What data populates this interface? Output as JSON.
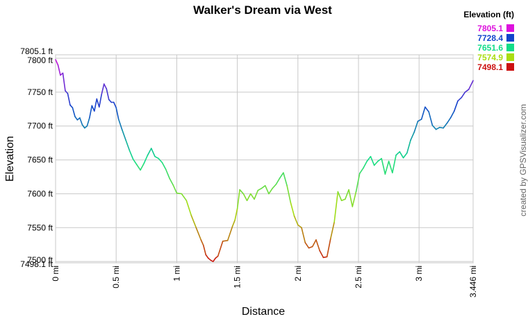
{
  "chart_data": {
    "type": "line",
    "title": "Walker's Dream via West",
    "xlabel": "Distance",
    "ylabel": "Elevation",
    "credit": "created by GPSVisualizer.com",
    "xlim": [
      0,
      3.446
    ],
    "ylim": [
      7498.1,
      7805.1
    ],
    "x_ticks": [
      {
        "value": 0,
        "label": "0 mi"
      },
      {
        "value": 0.5,
        "label": "0.5 mi"
      },
      {
        "value": 1,
        "label": "1 mi"
      },
      {
        "value": 1.5,
        "label": "1.5 mi"
      },
      {
        "value": 2,
        "label": "2 mi"
      },
      {
        "value": 2.5,
        "label": "2.5 mi"
      },
      {
        "value": 3,
        "label": "3 mi"
      },
      {
        "value": 3.446,
        "label": "3.446 mi"
      }
    ],
    "y_ticks": [
      {
        "value": 7498.1,
        "label": "7498.1 ft"
      },
      {
        "value": 7500,
        "label": "7500 ft"
      },
      {
        "value": 7550,
        "label": "7550 ft"
      },
      {
        "value": 7600,
        "label": "7600 ft"
      },
      {
        "value": 7650,
        "label": "7650 ft"
      },
      {
        "value": 7700,
        "label": "7700 ft"
      },
      {
        "value": 7750,
        "label": "7750 ft"
      },
      {
        "value": 7800,
        "label": "7800 ft"
      },
      {
        "value": 7805.1,
        "label": "7805.1 ft"
      }
    ],
    "grid": true,
    "legend": {
      "title": "Elevation (ft)",
      "placement": "top-right",
      "items": [
        {
          "label": "7805.1",
          "color": "#dd11dd"
        },
        {
          "label": "7728.4",
          "color": "#1144cc"
        },
        {
          "label": "7651.6",
          "color": "#11dd88"
        },
        {
          "label": "7574.9",
          "color": "#aadd11"
        },
        {
          "label": "7498.1",
          "color": "#cc1111"
        }
      ]
    },
    "series": [
      {
        "x": [
          0.0,
          0.02,
          0.04,
          0.06,
          0.08,
          0.1,
          0.12,
          0.14,
          0.16,
          0.18,
          0.2,
          0.22,
          0.24,
          0.26,
          0.28,
          0.3,
          0.32,
          0.34,
          0.36,
          0.38,
          0.4,
          0.42,
          0.44,
          0.46,
          0.48,
          0.5,
          0.52,
          0.55,
          0.58,
          0.61,
          0.64,
          0.67,
          0.7,
          0.73,
          0.76,
          0.79,
          0.82,
          0.85,
          0.88,
          0.91,
          0.94,
          0.97,
          1.0,
          1.04,
          1.08,
          1.12,
          1.16,
          1.2,
          1.22,
          1.24,
          1.26,
          1.28,
          1.3,
          1.32,
          1.34,
          1.38,
          1.42,
          1.46,
          1.48,
          1.5,
          1.52,
          1.55,
          1.58,
          1.61,
          1.64,
          1.67,
          1.7,
          1.73,
          1.76,
          1.79,
          1.82,
          1.85,
          1.88,
          1.91,
          1.94,
          1.97,
          2.0,
          2.03,
          2.06,
          2.09,
          2.12,
          2.15,
          2.18,
          2.21,
          2.24,
          2.27,
          2.3,
          2.33,
          2.36,
          2.39,
          2.42,
          2.45,
          2.48,
          2.51,
          2.54,
          2.57,
          2.6,
          2.63,
          2.66,
          2.69,
          2.72,
          2.75,
          2.78,
          2.81,
          2.84,
          2.87,
          2.9,
          2.93,
          2.96,
          2.99,
          3.02,
          3.05,
          3.08,
          3.11,
          3.14,
          3.17,
          3.2,
          3.23,
          3.26,
          3.29,
          3.32,
          3.35,
          3.38,
          3.41,
          3.446
        ],
        "y": [
          7798,
          7790,
          7775,
          7778,
          7752,
          7748,
          7731,
          7727,
          7714,
          7709,
          7712,
          7702,
          7697,
          7700,
          7712,
          7730,
          7722,
          7740,
          7728,
          7747,
          7762,
          7755,
          7739,
          7735,
          7735,
          7727,
          7710,
          7694,
          7679,
          7664,
          7651,
          7643,
          7635,
          7645,
          7657,
          7667,
          7655,
          7652,
          7646,
          7636,
          7623,
          7613,
          7601,
          7600,
          7590,
          7568,
          7550,
          7532,
          7524,
          7510,
          7505,
          7502,
          7500,
          7505,
          7508,
          7530,
          7531,
          7552,
          7561,
          7578,
          7606,
          7600,
          7590,
          7600,
          7592,
          7605,
          7608,
          7612,
          7600,
          7608,
          7614,
          7623,
          7631,
          7612,
          7587,
          7567,
          7554,
          7550,
          7528,
          7520,
          7522,
          7532,
          7516,
          7506,
          7507,
          7534,
          7558,
          7603,
          7590,
          7592,
          7606,
          7581,
          7603,
          7630,
          7638,
          7648,
          7655,
          7642,
          7648,
          7652,
          7629,
          7648,
          7631,
          7657,
          7662,
          7653,
          7660,
          7679,
          7691,
          7707,
          7710,
          7728,
          7721,
          7701,
          7695,
          7698,
          7697,
          7704,
          7712,
          7722,
          7737,
          7742,
          7750,
          7754,
          7767
        ]
      }
    ]
  }
}
